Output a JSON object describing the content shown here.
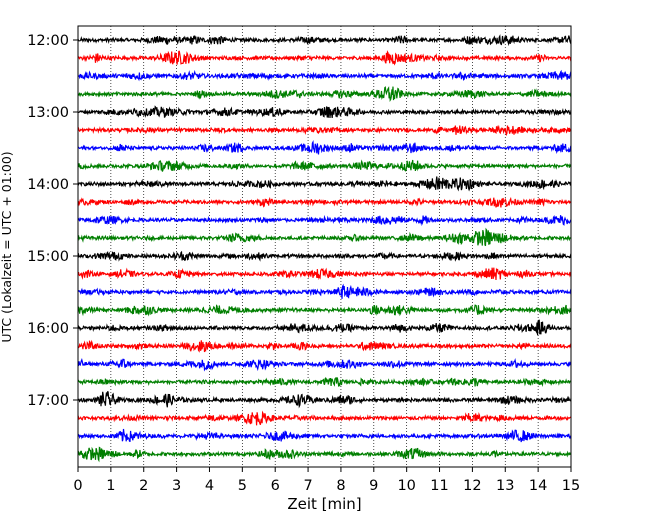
{
  "chart_data": {
    "type": "line",
    "xlabel": "Zeit  [min]",
    "ylabel": "UTC (Lokalzeit = UTC + 01:00)",
    "xlim": [
      0,
      15
    ],
    "xticks": [
      "0",
      "1",
      "2",
      "3",
      "4",
      "5",
      "6",
      "7",
      "8",
      "9",
      "10",
      "11",
      "12",
      "13",
      "14",
      "15"
    ],
    "yticks": [
      "12:00",
      "13:00",
      "14:00",
      "15:00",
      "16:00",
      "17:00"
    ],
    "trace_interval_min": 15,
    "first_trace": "12:00",
    "trace_count": 24,
    "trace_colors": [
      "#000000",
      "#ff0000",
      "#0000ff",
      "#007f00"
    ],
    "x_grid": "dotted",
    "y_grid": false,
    "legend": "none"
  }
}
